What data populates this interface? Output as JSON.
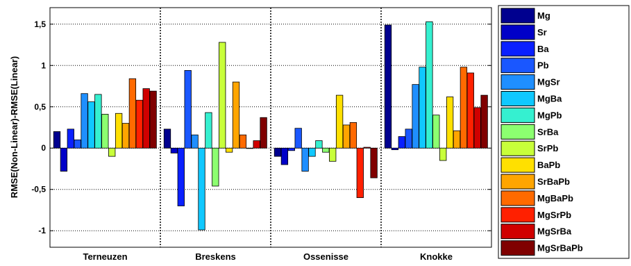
{
  "chart_data": {
    "type": "bar",
    "title": "",
    "xlabel": "",
    "ylabel": "RMSE(Non-Linear)-RMSE(Linear)",
    "ylim": [
      -1.2,
      1.7
    ],
    "yticks": [
      -1,
      -0.5,
      0,
      0.5,
      1,
      1.5
    ],
    "ytick_labels": [
      "-1",
      "-0,5",
      "0",
      "0,5",
      "1",
      "1,5"
    ],
    "grid": "horizontal dotted",
    "legend_position": "right",
    "categories": [
      "Terneuzen",
      "Breskens",
      "Ossenisse",
      "Knokke"
    ],
    "series": [
      {
        "name": "Mg",
        "color": "#00008f",
        "values": [
          0.2,
          0.23,
          -0.1,
          1.49
        ]
      },
      {
        "name": "Sr",
        "color": "#0000c8",
        "values": [
          -0.28,
          -0.06,
          -0.2,
          -0.02
        ]
      },
      {
        "name": "Ba",
        "color": "#0a20ff",
        "values": [
          0.23,
          -0.7,
          -0.03,
          0.14
        ]
      },
      {
        "name": "Pb",
        "color": "#1a57ff",
        "values": [
          0.1,
          0.94,
          0.24,
          0.23
        ]
      },
      {
        "name": "MgSr",
        "color": "#1f8fff",
        "values": [
          0.66,
          0.16,
          -0.28,
          0.77
        ]
      },
      {
        "name": "MgBa",
        "color": "#10c8ff",
        "values": [
          0.56,
          -0.99,
          -0.1,
          0.98
        ]
      },
      {
        "name": "MgPb",
        "color": "#35f0d0",
        "values": [
          0.65,
          0.43,
          0.09,
          1.53
        ]
      },
      {
        "name": "SrBa",
        "color": "#8cff70",
        "values": [
          0.41,
          -0.46,
          -0.05,
          0.4
        ]
      },
      {
        "name": "SrPb",
        "color": "#c8ff3a",
        "values": [
          -0.1,
          1.28,
          -0.16,
          -0.15
        ]
      },
      {
        "name": "BaPb",
        "color": "#ffe000",
        "values": [
          0.42,
          -0.05,
          0.64,
          0.62
        ]
      },
      {
        "name": "SrBaPb",
        "color": "#ffa500",
        "values": [
          0.3,
          0.8,
          0.28,
          0.21
        ]
      },
      {
        "name": "MgBaPb",
        "color": "#ff6a00",
        "values": [
          0.84,
          0.16,
          0.31,
          0.98
        ]
      },
      {
        "name": "MgSrPb",
        "color": "#ff2000",
        "values": [
          0.58,
          0.0,
          -0.6,
          0.91
        ]
      },
      {
        "name": "MgSrBa",
        "color": "#d00000",
        "values": [
          0.72,
          0.09,
          0.01,
          0.49
        ]
      },
      {
        "name": "MgSrBaPb",
        "color": "#800000",
        "values": [
          0.69,
          0.37,
          -0.36,
          0.64
        ]
      }
    ]
  }
}
